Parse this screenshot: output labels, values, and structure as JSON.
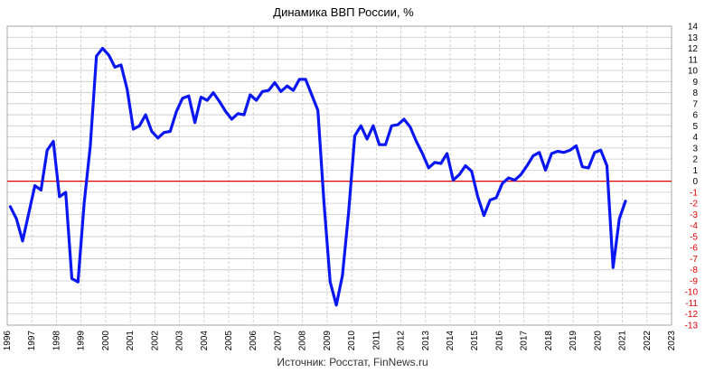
{
  "chart_data": {
    "type": "line",
    "title": "Динамика ВВП России, %",
    "source": "Источник: Росстат, FinNews.ru",
    "xlabel": "",
    "ylabel": "",
    "xlim": [
      1996,
      2023
    ],
    "ylim": [
      -13,
      14
    ],
    "y_ticks": [
      14,
      13,
      12,
      11,
      10,
      9,
      8,
      7,
      6,
      5,
      4,
      3,
      2,
      1,
      0,
      -1,
      -2,
      -3,
      -4,
      -5,
      -6,
      -7,
      -8,
      -9,
      -10,
      -11,
      -12,
      -13
    ],
    "x_ticks": [
      "1996",
      "1997",
      "1998",
      "1999",
      "2000",
      "2001",
      "2002",
      "2003",
      "2004",
      "2005",
      "2006",
      "2007",
      "2008",
      "2009",
      "2010",
      "2011",
      "2012",
      "2013",
      "2014",
      "2015",
      "2016",
      "2017",
      "2018",
      "2019",
      "2020",
      "2021",
      "2022",
      "2023"
    ],
    "grid": true,
    "colors": {
      "series": "#0a17f0",
      "zero_line": "#e00000",
      "positive_tick": "#000000",
      "negative_tick": "#e00000",
      "grid": "#c8c8c8"
    },
    "reference_line": {
      "y": 0
    },
    "series": [
      {
        "x": [
          1996.125,
          1996.375,
          1996.625,
          1996.875,
          1997.125,
          1997.375,
          1997.625,
          1997.875,
          1998.125,
          1998.375,
          1998.625,
          1998.875,
          1999.125,
          1999.375,
          1999.625,
          1999.875,
          2000.125,
          2000.375,
          2000.625,
          2000.875,
          2001.125,
          2001.375,
          2001.625,
          2001.875,
          2002.125,
          2002.375,
          2002.625,
          2002.875,
          2003.125,
          2003.375,
          2003.625,
          2003.875,
          2004.125,
          2004.375,
          2004.625,
          2004.875,
          2005.125,
          2005.375,
          2005.625,
          2005.875,
          2006.125,
          2006.375,
          2006.625,
          2006.875,
          2007.125,
          2007.375,
          2007.625,
          2007.875,
          2008.125,
          2008.375,
          2008.625,
          2008.875,
          2009.125,
          2009.375,
          2009.625,
          2009.875,
          2010.125,
          2010.375,
          2010.625,
          2010.875,
          2011.125,
          2011.375,
          2011.625,
          2011.875,
          2012.125,
          2012.375,
          2012.625,
          2012.875,
          2013.125,
          2013.375,
          2013.625,
          2013.875,
          2014.125,
          2014.375,
          2014.625,
          2014.875,
          2015.125,
          2015.375,
          2015.625,
          2015.875,
          2016.125,
          2016.375,
          2016.625,
          2016.875,
          2017.125,
          2017.375,
          2017.625,
          2017.875,
          2018.125,
          2018.375,
          2018.625,
          2018.875,
          2019.125,
          2019.375,
          2019.625,
          2019.875,
          2020.125,
          2020.375,
          2020.625,
          2020.875,
          2021.125
        ],
        "y": [
          -2.3,
          -3.4,
          -5.4,
          -2.9,
          -0.4,
          -0.8,
          2.8,
          3.6,
          -1.4,
          -1.0,
          -8.8,
          -9.1,
          -2.0,
          3.2,
          11.3,
          12.0,
          11.4,
          10.3,
          10.5,
          8.3,
          4.7,
          5.0,
          6.0,
          4.5,
          3.9,
          4.4,
          4.5,
          6.3,
          7.5,
          7.7,
          5.3,
          7.6,
          7.3,
          8.0,
          7.2,
          6.3,
          5.6,
          6.1,
          6.0,
          7.8,
          7.3,
          8.1,
          8.2,
          8.9,
          8.1,
          8.6,
          8.2,
          9.2,
          9.2,
          7.8,
          6.4,
          -2.0,
          -9.1,
          -11.2,
          -8.5,
          -2.8,
          4.1,
          5.0,
          3.8,
          5.0,
          3.3,
          3.3,
          5.0,
          5.1,
          5.6,
          4.9,
          3.6,
          2.5,
          1.2,
          1.7,
          1.6,
          2.5,
          0.1,
          0.6,
          1.4,
          0.9,
          -1.4,
          -3.1,
          -1.7,
          -1.5,
          -0.2,
          0.3,
          0.1,
          0.6,
          1.4,
          2.3,
          2.6,
          1.0,
          2.5,
          2.7,
          2.6,
          2.8,
          3.2,
          1.3,
          1.2,
          2.6,
          2.8,
          1.4,
          -7.8,
          -3.4,
          -1.8
        ]
      }
    ]
  }
}
